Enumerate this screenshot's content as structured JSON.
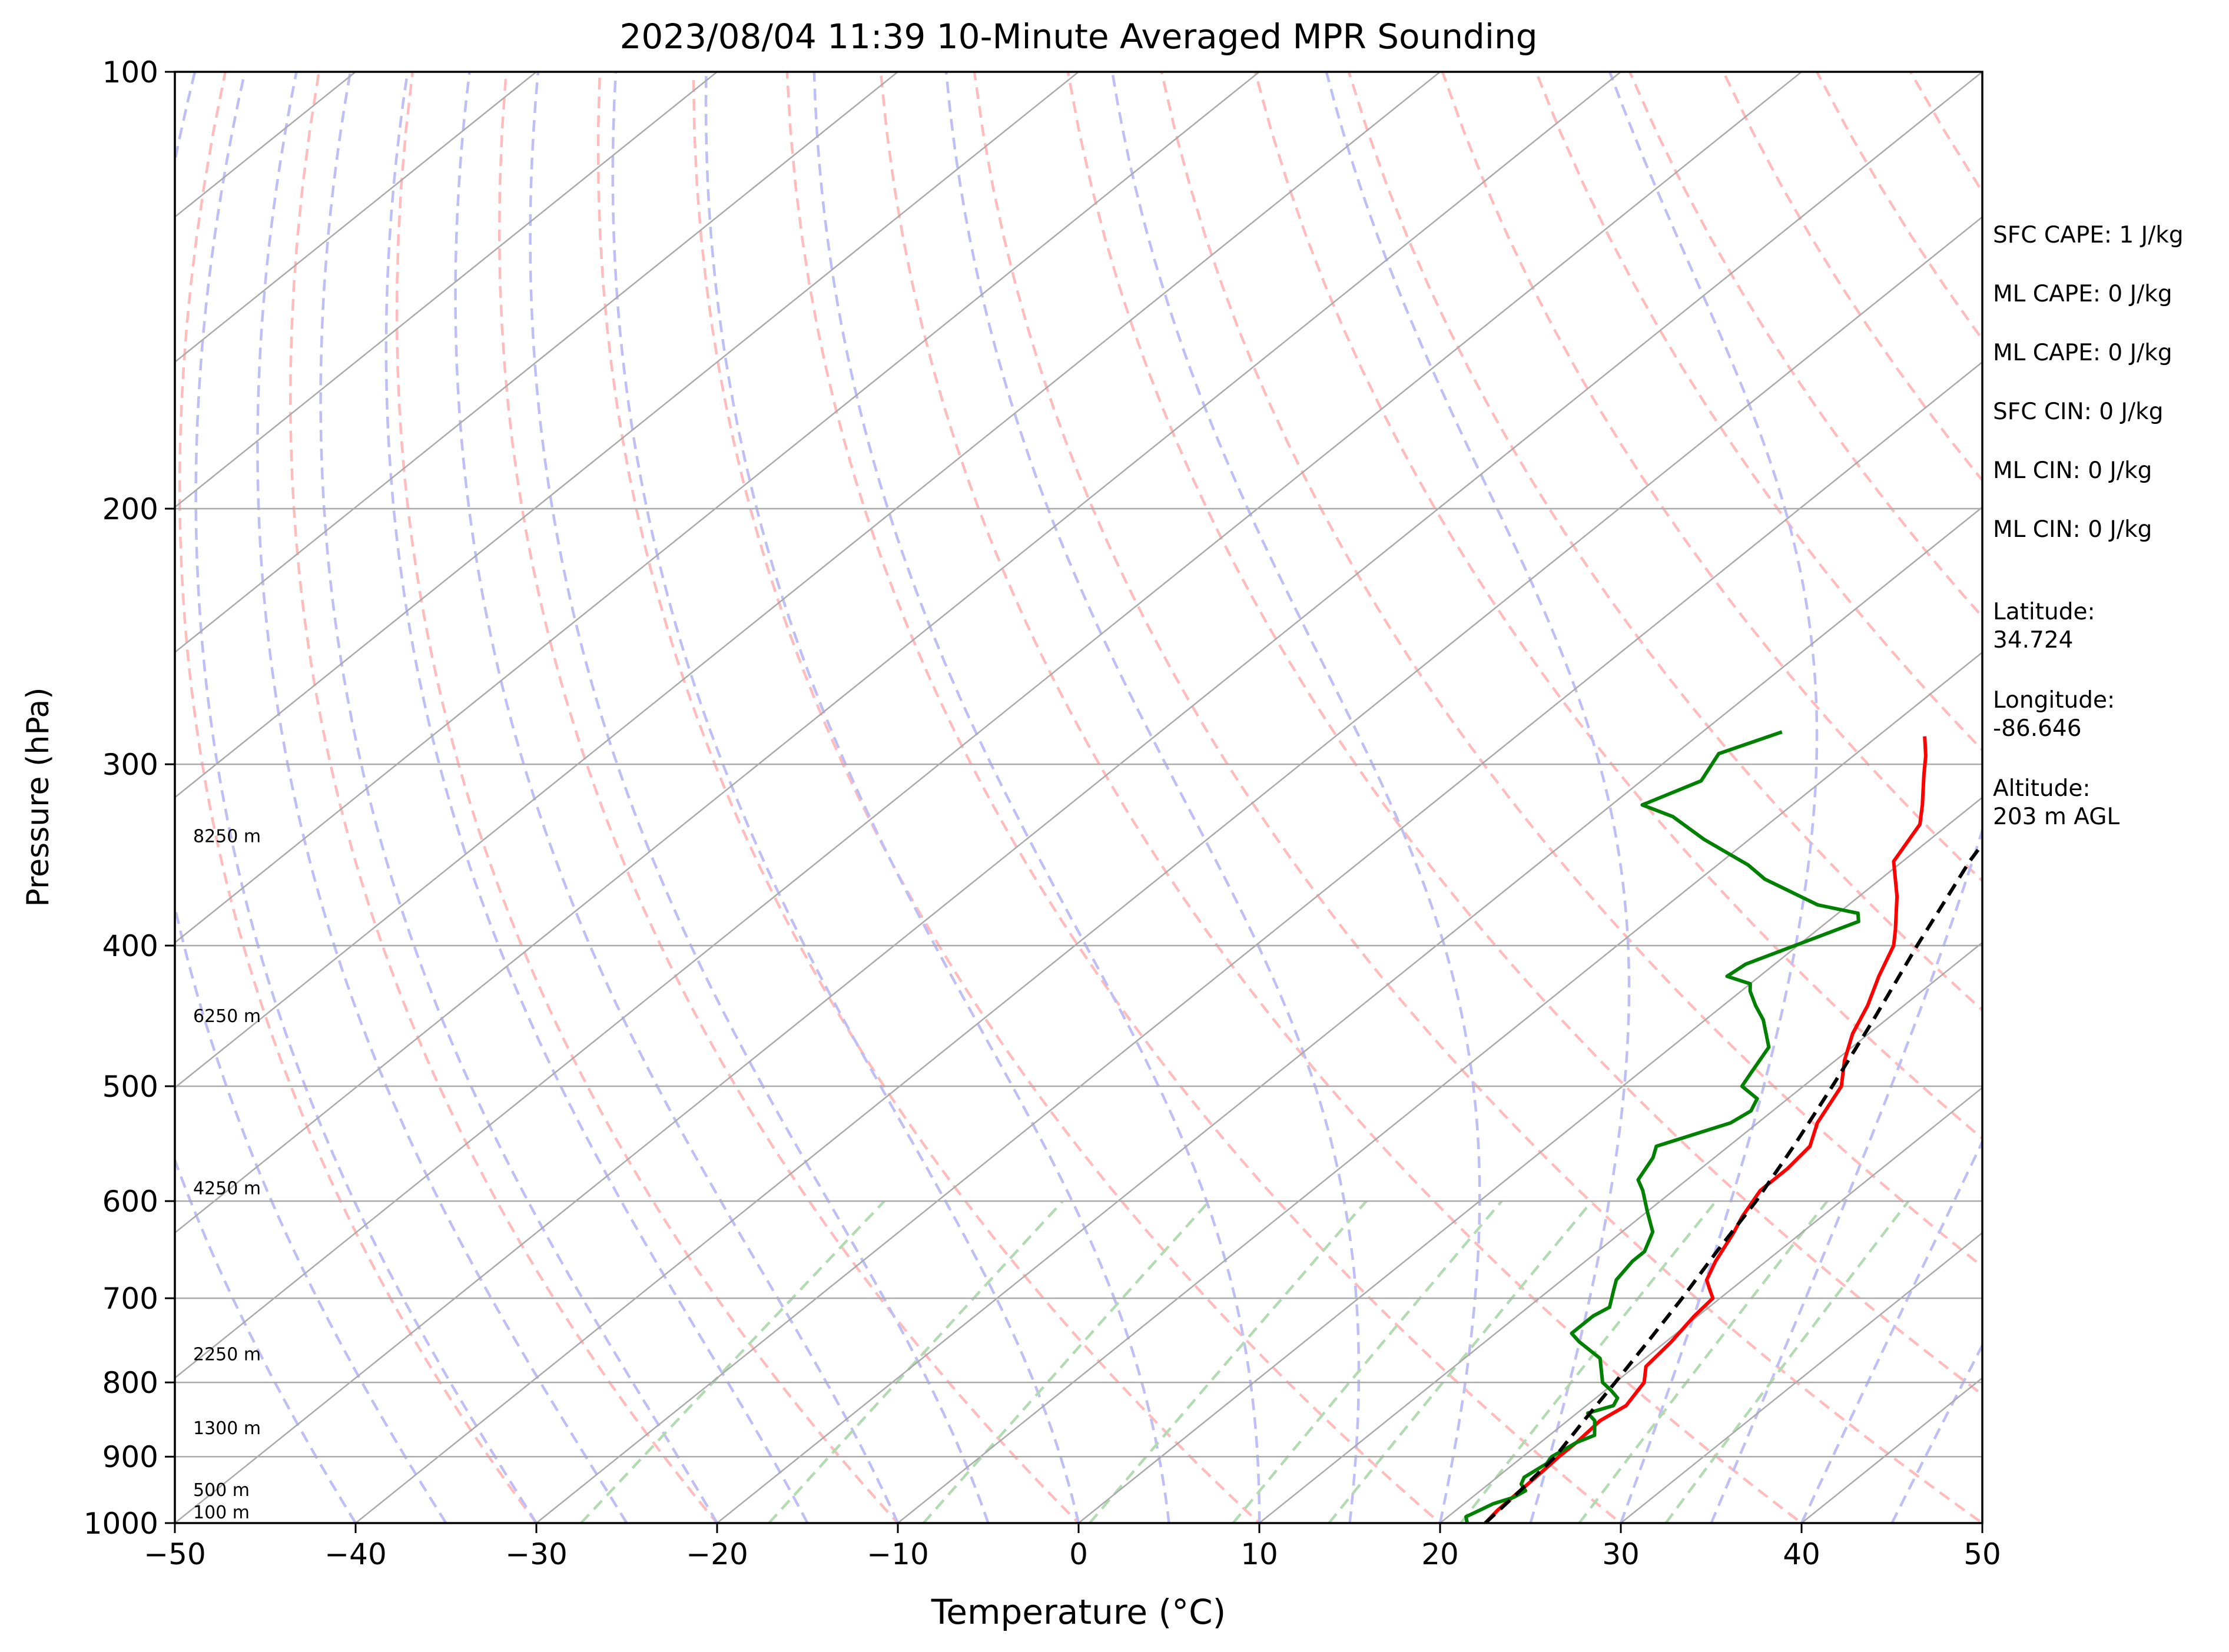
{
  "title": "2023/08/04 11:39 10-Minute Averaged MPR Sounding",
  "chart_data": {
    "type": "skew-t",
    "title": "2023/08/04 11:39 10-Minute Averaged MPR Sounding",
    "xlabel": "Temperature (°C)",
    "ylabel": "Pressure (hPa)",
    "xlim": [
      -50,
      50
    ],
    "ylim": [
      1000,
      100
    ],
    "y_scale": "log",
    "x_ticks": [
      -50,
      -40,
      -30,
      -20,
      -10,
      0,
      10,
      20,
      30,
      40,
      50
    ],
    "x_tick_labels": [
      "−50",
      "−40",
      "−30",
      "−20",
      "−10",
      "0",
      "10",
      "20",
      "30",
      "40",
      "50"
    ],
    "y_ticks": [
      100,
      200,
      300,
      400,
      500,
      600,
      700,
      800,
      900,
      1000
    ],
    "y_tick_labels": [
      "100",
      "200",
      "300",
      "400",
      "500",
      "600",
      "700",
      "800",
      "900",
      "1000"
    ],
    "grid": true,
    "colors": {
      "temperature": "#ff0000",
      "dewpoint": "#008000",
      "parcel": "#000000",
      "dry_adiabats": "#ffbcbc",
      "moist_adiabats": "#bfbff5",
      "mixing_ratio": "#b2dbb2",
      "isotherms": "#aaaaaa"
    },
    "series": [
      {
        "key": "temperature",
        "points": [
          [
            22.5,
            1000
          ],
          [
            22.3,
            980
          ],
          [
            22.2,
            950
          ],
          [
            22.1,
            920
          ],
          [
            22.0,
            900
          ],
          [
            22.0,
            880
          ],
          [
            21.8,
            850
          ],
          [
            22.2,
            830
          ],
          [
            21.6,
            800
          ],
          [
            20.6,
            780
          ],
          [
            20.3,
            750
          ],
          [
            19.8,
            720
          ],
          [
            19.6,
            700
          ],
          [
            18.8,
            690
          ],
          [
            18.0,
            680
          ],
          [
            17.2,
            660
          ],
          [
            16.2,
            630
          ],
          [
            15.6,
            615
          ],
          [
            14.8,
            590
          ],
          [
            14.8,
            570
          ],
          [
            14.5,
            550
          ],
          [
            13.3,
            530
          ],
          [
            12.1,
            500
          ],
          [
            10.5,
            480
          ],
          [
            9.1,
            460
          ],
          [
            8.0,
            440
          ],
          [
            6.6,
            420
          ],
          [
            5.3,
            400
          ],
          [
            4.3,
            390
          ],
          [
            2.1,
            370
          ],
          [
            -0.5,
            350
          ],
          [
            -1.6,
            330
          ],
          [
            -2.8,
            320
          ],
          [
            -4.8,
            305
          ],
          [
            -6.0,
            296
          ],
          [
            -7.4,
            287
          ]
        ]
      },
      {
        "key": "dewpoint",
        "points": [
          [
            21.5,
            1000
          ],
          [
            21.0,
            990
          ],
          [
            21.3,
            980
          ],
          [
            21.6,
            970
          ],
          [
            22.3,
            960
          ],
          [
            22.5,
            950
          ],
          [
            21.8,
            940
          ],
          [
            21.5,
            930
          ],
          [
            21.8,
            910
          ],
          [
            21.6,
            900
          ],
          [
            22.0,
            880
          ],
          [
            22.5,
            870
          ],
          [
            21.5,
            850
          ],
          [
            20.6,
            840
          ],
          [
            21.5,
            830
          ],
          [
            21.2,
            820
          ],
          [
            20.3,
            810
          ],
          [
            19.3,
            800
          ],
          [
            17.5,
            770
          ],
          [
            15.2,
            750
          ],
          [
            14.2,
            740
          ],
          [
            14.2,
            720
          ],
          [
            14.5,
            710
          ],
          [
            13.5,
            690
          ],
          [
            13.0,
            680
          ],
          [
            12.6,
            660
          ],
          [
            12.6,
            650
          ],
          [
            11.7,
            630
          ],
          [
            10.0,
            610
          ],
          [
            8.3,
            590
          ],
          [
            7.3,
            580
          ],
          [
            6.6,
            560
          ],
          [
            6.0,
            550
          ],
          [
            8.5,
            530
          ],
          [
            8.8,
            520
          ],
          [
            8.3,
            510
          ],
          [
            6.6,
            500
          ],
          [
            6.2,
            490
          ],
          [
            5.4,
            470
          ],
          [
            3.2,
            450
          ],
          [
            1.8,
            440
          ],
          [
            0.5,
            430
          ],
          [
            0.0,
            425
          ],
          [
            -1.8,
            420
          ],
          [
            -1.6,
            412
          ],
          [
            1.7,
            385
          ],
          [
            1.1,
            380
          ],
          [
            -1.7,
            375
          ],
          [
            -6.4,
            360
          ],
          [
            -8.3,
            352
          ],
          [
            -12.5,
            338
          ],
          [
            -15.8,
            326
          ],
          [
            -18.3,
            320
          ],
          [
            -16.7,
            308
          ],
          [
            -17.6,
            295
          ],
          [
            -15.6,
            285
          ]
        ]
      },
      {
        "key": "parcel",
        "points": [
          [
            22.5,
            1000
          ],
          [
            22.2,
            950
          ],
          [
            21.8,
            900
          ],
          [
            20.9,
            850
          ],
          [
            20.0,
            800
          ],
          [
            19.0,
            750
          ],
          [
            17.9,
            700
          ],
          [
            16.6,
            650
          ],
          [
            15.3,
            600
          ],
          [
            13.6,
            550
          ],
          [
            11.6,
            500
          ],
          [
            9.3,
            450
          ],
          [
            6.6,
            400
          ],
          [
            3.7,
            350
          ],
          [
            1.0,
            300
          ],
          [
            -0.3,
            285
          ]
        ]
      }
    ],
    "stats": [
      "SFC CAPE: 1 J/kg",
      "ML CAPE: 0 J/kg",
      "ML CAPE: 0 J/kg",
      "SFC CIN: 0 J/kg",
      "ML CIN: 0 J/kg",
      "ML CIN: 0 J/kg"
    ],
    "location": [
      {
        "label": "Latitude:",
        "value": "34.724"
      },
      {
        "label": "Longitude:",
        "value": "-86.646"
      },
      {
        "label": "Altitude:",
        "value": "203 m AGL"
      }
    ],
    "height_labels": [
      {
        "text": "8250 m",
        "p": 342
      },
      {
        "text": "6250 m",
        "p": 455
      },
      {
        "text": "4250 m",
        "p": 598
      },
      {
        "text": "2250 m",
        "p": 778
      },
      {
        "text": "1300 m",
        "p": 875
      },
      {
        "text": "500 m",
        "p": 965
      },
      {
        "text": "100 m",
        "p": 1000
      }
    ]
  }
}
